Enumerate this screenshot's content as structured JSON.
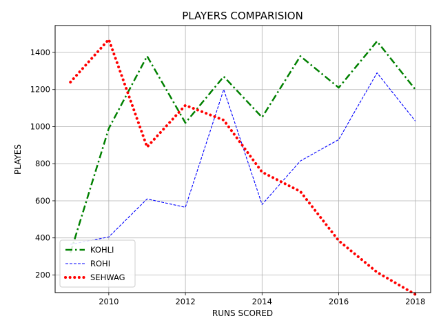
{
  "chart_data": {
    "type": "line",
    "title": "PLAYERS COMPARISION",
    "xlabel": "RUNS SCORED",
    "ylabel": "PLAYES",
    "xlim": [
      2008.6,
      2018.4
    ],
    "ylim": [
      105,
      1545
    ],
    "xticks": [
      2010,
      2012,
      2014,
      2016,
      2018
    ],
    "yticks": [
      200,
      400,
      600,
      800,
      1000,
      1200,
      1400
    ],
    "grid": true,
    "legend_position": "lower-left",
    "x": [
      2009,
      2010,
      2011,
      2012,
      2013,
      2014,
      2015,
      2016,
      2017,
      2018
    ],
    "series": [
      {
        "name": "KOHLI",
        "color": "#008000",
        "style": "dashdot",
        "values": [
          320,
          990,
          1380,
          1020,
          1270,
          1050,
          1380,
          1210,
          1460,
          1200
        ]
      },
      {
        "name": "ROHI",
        "color": "#0000ff",
        "style": "dashed",
        "values": [
          365,
          405,
          610,
          565,
          1200,
          580,
          815,
          930,
          1290,
          1030
        ]
      },
      {
        "name": "SEHWAG",
        "color": "#ff0000",
        "style": "dotted",
        "values": [
          1240,
          1470,
          890,
          1115,
          1035,
          755,
          650,
          385,
          215,
          95
        ]
      }
    ]
  }
}
